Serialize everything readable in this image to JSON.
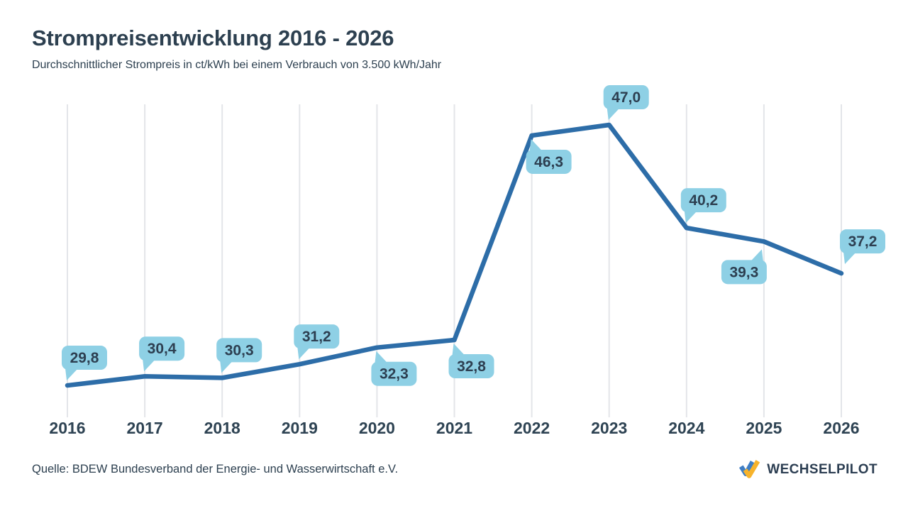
{
  "chart_data": {
    "type": "line",
    "title": "Strompreisentwicklung 2016 - 2026",
    "subtitle": "Durchschnittlicher Strompreis in ct/kWh bei einem Verbrauch von 3.500 kWh/Jahr",
    "unit": "ct/kWh",
    "categories": [
      "2016",
      "2017",
      "2018",
      "2019",
      "2020",
      "2021",
      "2022",
      "2023",
      "2024",
      "2025",
      "2026"
    ],
    "values": [
      29.8,
      30.4,
      30.3,
      31.2,
      32.3,
      32.8,
      46.3,
      47.0,
      40.2,
      39.3,
      37.2
    ],
    "value_labels": [
      "29,8",
      "30,4",
      "30,3",
      "31,2",
      "32,3",
      "32,8",
      "46,3",
      "47,0",
      "40,2",
      "39,3",
      "37,2"
    ],
    "label_side": [
      "above",
      "above",
      "above",
      "above",
      "below",
      "below",
      "below",
      "above",
      "above",
      "below-left",
      "above-right"
    ],
    "ylim": [
      28,
      48
    ],
    "grid": "vertical-only",
    "legend": "none",
    "colors": {
      "line": "#2d6da8",
      "bubble": "#8ed0e5",
      "bubble_text": "#2d3f51",
      "grid": "#e3e5e9",
      "axis_text": "#2e4353"
    }
  },
  "footer": {
    "source": "Quelle: BDEW Bundesverband der Energie- und Wasserwirtschaft e.V.",
    "brand": "WECHSELPILOT",
    "brand_colors": {
      "blue": "#3f7ec4",
      "yellow": "#f7b32b",
      "text": "#2c3e52"
    }
  }
}
